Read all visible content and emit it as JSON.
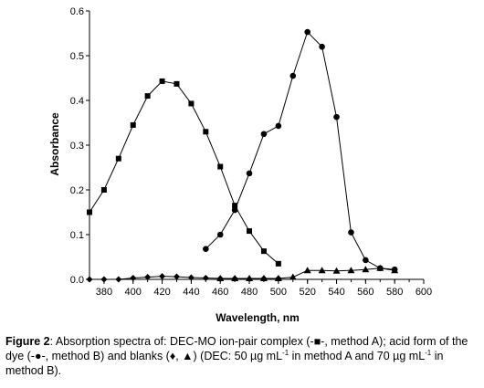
{
  "chart_data": {
    "type": "line",
    "title": "",
    "xlabel": "Wavelength, nm",
    "ylabel": "Absorbance",
    "xlim": [
      370,
      600
    ],
    "ylim": [
      0,
      0.6
    ],
    "xticks": [
      380,
      400,
      420,
      440,
      460,
      480,
      500,
      520,
      540,
      560,
      580,
      600
    ],
    "yticks": [
      0.0,
      0.1,
      0.2,
      0.3,
      0.4,
      0.5,
      0.6
    ],
    "ytick_labels": [
      "0.0",
      "0.1",
      "0.2",
      "0.3",
      "0.4",
      "0.5",
      "0.6"
    ],
    "grid": false,
    "legend": "none",
    "series": [
      {
        "marker": "square",
        "x": [
          370,
          380,
          390,
          400,
          410,
          420,
          430,
          440,
          450,
          460,
          470,
          480,
          490,
          500
        ],
        "y": [
          0.15,
          0.2,
          0.27,
          0.345,
          0.41,
          0.443,
          0.437,
          0.393,
          0.33,
          0.252,
          0.165,
          0.108,
          0.063,
          0.035
        ]
      },
      {
        "marker": "circle",
        "x": [
          450,
          460,
          470,
          480,
          490,
          500,
          510,
          520,
          530,
          540,
          550,
          560,
          570,
          580
        ],
        "y": [
          0.068,
          0.1,
          0.155,
          0.237,
          0.325,
          0.343,
          0.455,
          0.553,
          0.52,
          0.363,
          0.105,
          0.043,
          0.025,
          0.022
        ]
      },
      {
        "marker": "diamond",
        "x": [
          370,
          380,
          390,
          400,
          410,
          420,
          430,
          440,
          450,
          460,
          470,
          480,
          490,
          500
        ],
        "y": [
          0.0,
          0.0,
          0.0,
          0.003,
          0.005,
          0.007,
          0.006,
          0.004,
          0.003,
          0.002,
          0.002,
          0.001,
          0.002,
          0.002
        ]
      },
      {
        "marker": "triangle",
        "x": [
          460,
          470,
          480,
          490,
          500,
          510,
          520,
          530,
          540,
          550,
          560,
          570,
          580
        ],
        "y": [
          0.002,
          0.002,
          0.002,
          0.002,
          0.002,
          0.005,
          0.02,
          0.02,
          0.019,
          0.02,
          0.022,
          0.025,
          0.02
        ]
      }
    ]
  },
  "caption": {
    "label": "Figure 2",
    "text": ": Absorption spectra of: DEC-MO ion-pair complex (-■-, method A); acid form of the dye (-●-, method B) and blanks (♦, ▲) (DEC: 50 µg mL",
    "sup1": "-1",
    "text2": " in method A and 70 µg mL",
    "sup2": "-1",
    "text3": " in method B)."
  }
}
